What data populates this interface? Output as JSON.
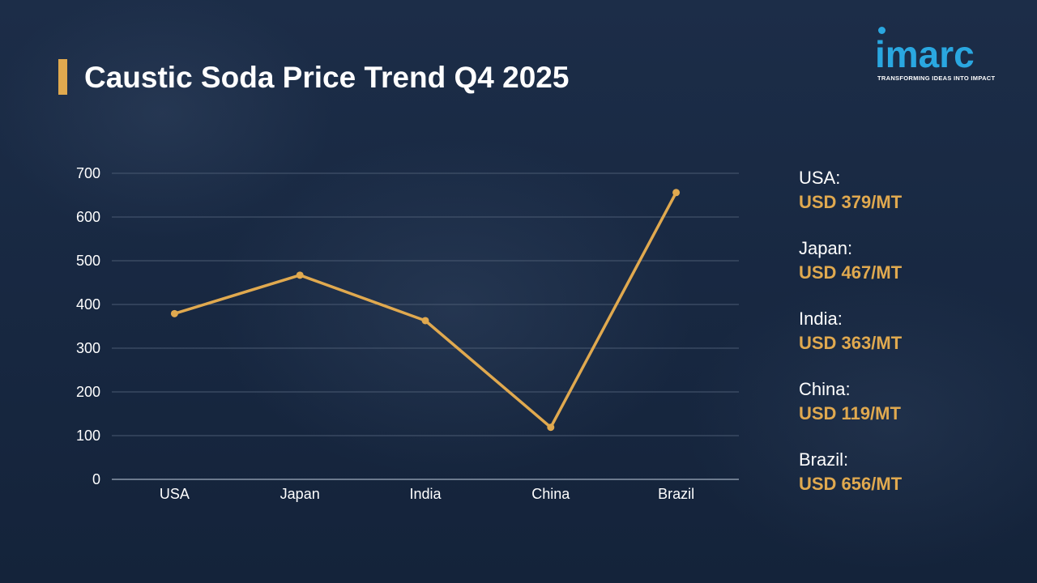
{
  "title": "Caustic Soda Price Trend Q4 2025",
  "logo": {
    "name": "imarc",
    "tagline": "TRANSFORMING IDEAS INTO IMPACT",
    "color": "#2aa7e0"
  },
  "colors": {
    "accent": "#e0a94f",
    "background": "#1a2b45",
    "text": "#ffffff",
    "gridline": "#4a5a72"
  },
  "chart_data": {
    "type": "line",
    "title": "Caustic Soda Price Trend Q4 2025",
    "xlabel": "",
    "ylabel": "",
    "categories": [
      "USA",
      "Japan",
      "India",
      "China",
      "Brazil"
    ],
    "series": [
      {
        "values": [
          379,
          467,
          363,
          119,
          656
        ],
        "color": "#e0a94f"
      }
    ],
    "ylim": [
      0,
      700
    ],
    "yticks": [
      0,
      100,
      200,
      300,
      400,
      500,
      600,
      700
    ],
    "grid": true,
    "legend": "none"
  },
  "prices": [
    {
      "country": "USA:",
      "price": "USD 379/MT"
    },
    {
      "country": "Japan:",
      "price": "USD 467/MT"
    },
    {
      "country": "India:",
      "price": "USD 363/MT"
    },
    {
      "country": "China:",
      "price": "USD 119/MT"
    },
    {
      "country": "Brazil:",
      "price": "USD 656/MT"
    }
  ]
}
